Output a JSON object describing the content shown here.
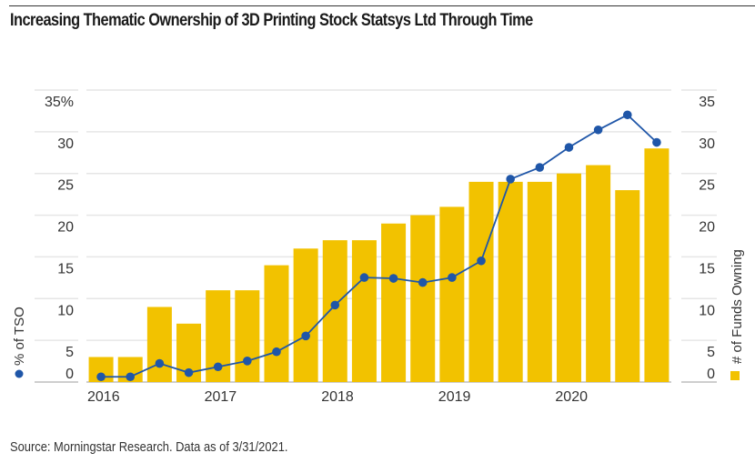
{
  "header": {
    "title": "Increasing Thematic Ownership of 3D Printing Stock Statsys Ltd Through Time"
  },
  "footer": {
    "source": "Source: Morningstar Research. Data as of 3/31/2021."
  },
  "colors": {
    "bar": "#F2C200",
    "line": "#1F56A8",
    "grid": "#E6E6E6",
    "text": "#333333"
  },
  "chart_data": {
    "type": "bar+line",
    "title": "Increasing Thematic Ownership of 3D Printing Stock Statsys Ltd Through Time",
    "x": [
      "2016Q1",
      "2016Q2",
      "2016Q3",
      "2016Q4",
      "2017Q1",
      "2017Q2",
      "2017Q3",
      "2017Q4",
      "2018Q1",
      "2018Q2",
      "2018Q3",
      "2018Q4",
      "2019Q1",
      "2019Q2",
      "2019Q3",
      "2019Q4",
      "2020Q1",
      "2020Q2",
      "2020Q3",
      "2020Q4"
    ],
    "xtick_labels": [
      "2016",
      "2017",
      "2018",
      "2019",
      "2020"
    ],
    "xtick_positions": [
      0,
      4,
      8,
      12,
      16
    ],
    "series": [
      {
        "name": "# of Funds Owning",
        "type": "bar",
        "axis": "right",
        "values": [
          3,
          3,
          9,
          7,
          11,
          11,
          14,
          16,
          17,
          17,
          19,
          20,
          21,
          24,
          24,
          24,
          25,
          26,
          23,
          28
        ]
      },
      {
        "name": "% of TSO",
        "type": "line",
        "axis": "left",
        "values": [
          0.3,
          0.3,
          1.9,
          0.8,
          1.5,
          2.2,
          3.3,
          5.2,
          8.9,
          12.2,
          12.1,
          11.6,
          12.2,
          14.2,
          24.0,
          25.4,
          27.8,
          29.9,
          31.7,
          28.4
        ]
      }
    ],
    "y_left": {
      "label": "% of TSO",
      "ticks": [
        "35%",
        "30",
        "25",
        "20",
        "15",
        "10",
        "5",
        "0"
      ],
      "tick_values": [
        35,
        30,
        25,
        20,
        15,
        10,
        5,
        0
      ],
      "ylim": [
        0,
        35
      ]
    },
    "y_right": {
      "label": "# of Funds Owning",
      "ticks": [
        "35",
        "30",
        "25",
        "20",
        "15",
        "10",
        "5",
        "0"
      ],
      "tick_values": [
        35,
        30,
        25,
        20,
        15,
        10,
        5,
        0
      ],
      "ylim": [
        0,
        35
      ]
    },
    "grid": true,
    "legend": [
      {
        "name": "% of TSO",
        "marker": "circle",
        "placement": "left-axis"
      },
      {
        "name": "# of Funds Owning",
        "marker": "square",
        "placement": "right-axis"
      }
    ]
  }
}
